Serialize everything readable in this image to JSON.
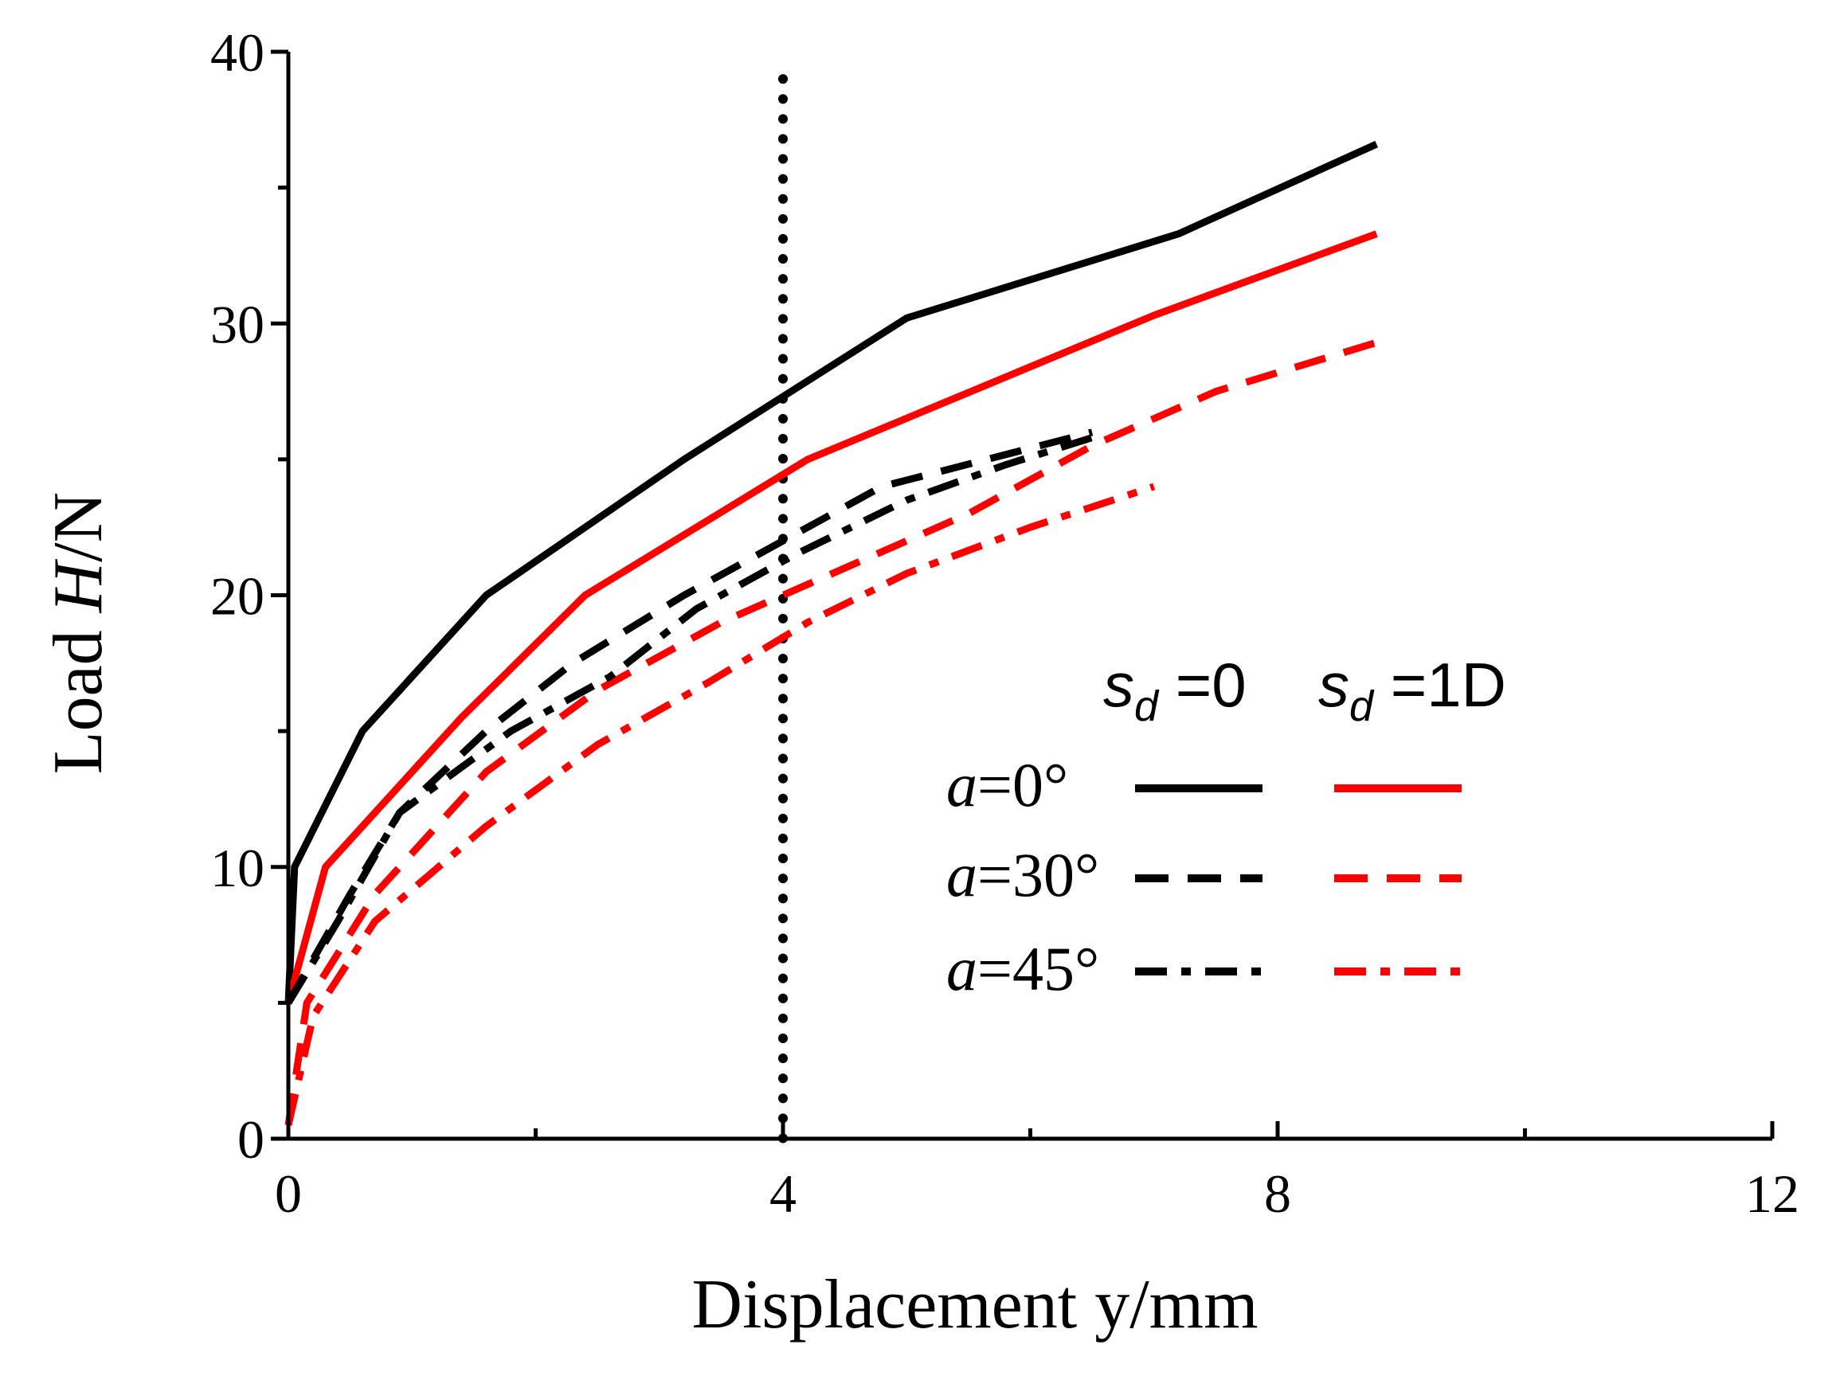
{
  "chart_data": {
    "type": "line",
    "title": "",
    "xlabel": "Displacement y/mm",
    "ylabel_prefix": "Load ",
    "ylabel_var": "H",
    "ylabel_suffix": "/N",
    "xlim": [
      0,
      12
    ],
    "ylim": [
      0,
      40
    ],
    "xticks": [
      0,
      4,
      8,
      12
    ],
    "yticks": [
      0,
      10,
      20,
      30,
      40
    ],
    "xtick_labels": [
      "0",
      "4",
      "8",
      "12"
    ],
    "ytick_labels": [
      "0",
      "10",
      "20",
      "30",
      "40"
    ],
    "grid": false,
    "reference_line": {
      "x": 4,
      "style": "dotted",
      "color": "#000000"
    },
    "legend": {
      "placement": "center-right",
      "column_headers": [
        {
          "var": "s",
          "sub": "d",
          "rest": " =0"
        },
        {
          "var": "s",
          "sub": "d",
          "rest": " =1D"
        }
      ],
      "rows": [
        {
          "var": "a",
          "rest": "=0°",
          "style": "solid"
        },
        {
          "var": "a",
          "rest": "=30°",
          "style": "dashed"
        },
        {
          "var": "a",
          "rest": "=45°",
          "style": "dashdot"
        }
      ]
    },
    "series": [
      {
        "name": "a=0°, s_d=0",
        "color": "#000000",
        "style": "solid",
        "x": [
          0,
          0.05,
          0.6,
          1.6,
          3.2,
          5.0,
          7.2,
          8.8
        ],
        "y": [
          5,
          10,
          15,
          20,
          25,
          30.2,
          33.3,
          36.6
        ]
      },
      {
        "name": "a=0°, s_d=1D",
        "color": "#ff0000",
        "style": "solid",
        "x": [
          0,
          0.3,
          1.4,
          2.4,
          4.2,
          7.0,
          8.8
        ],
        "y": [
          5,
          10,
          15.5,
          20,
          25,
          30.3,
          33.3
        ]
      },
      {
        "name": "a=30°, s_d=0",
        "color": "#000000",
        "style": "dashed",
        "x": [
          0,
          0.5,
          0.9,
          1.6,
          2.3,
          3.2,
          4.0,
          4.8,
          6.5
        ],
        "y": [
          5,
          9,
          12,
          15,
          17.5,
          20,
          22,
          24,
          26
        ]
      },
      {
        "name": "a=30°, s_d=1D",
        "color": "#ff0000",
        "style": "dashed",
        "x": [
          0,
          0.15,
          0.7,
          1.6,
          2.5,
          3.5,
          4.5,
          5.5,
          6.5,
          7.5,
          8.8
        ],
        "y": [
          0.5,
          5,
          9,
          13.5,
          16.5,
          19,
          21,
          23,
          25.5,
          27.5,
          29.3
        ]
      },
      {
        "name": "a=45°, s_d=0",
        "color": "#000000",
        "style": "dashdot",
        "x": [
          0,
          0.4,
          0.9,
          1.8,
          2.6,
          3.3,
          4.1,
          5.0,
          5.8,
          6.5
        ],
        "y": [
          5,
          8,
          12,
          15,
          17,
          19.5,
          21.5,
          23.5,
          24.8,
          25.8
        ]
      },
      {
        "name": "a=45°, s_d=1D",
        "color": "#ff0000",
        "style": "dashdot",
        "x": [
          0,
          0.2,
          0.7,
          1.6,
          2.5,
          3.4,
          4.2,
          5.0,
          6.0,
          7.0
        ],
        "y": [
          0.5,
          4.5,
          8,
          11.5,
          14.5,
          16.8,
          19,
          20.8,
          22.5,
          24
        ]
      }
    ]
  }
}
